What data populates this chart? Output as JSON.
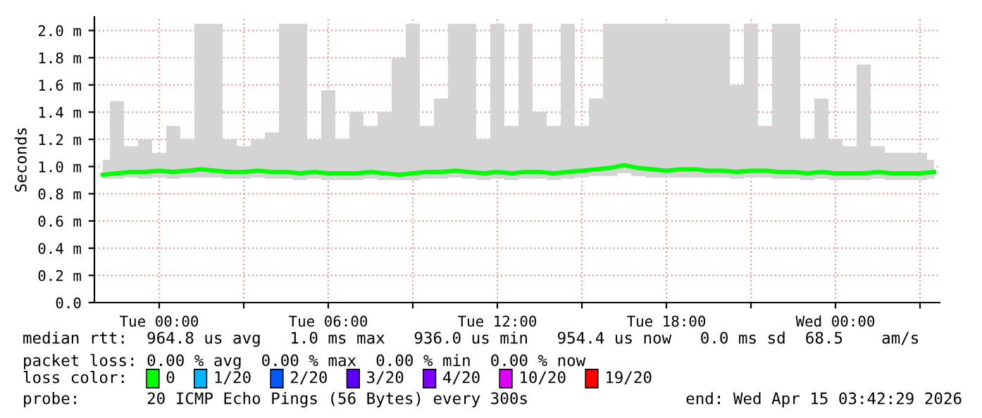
{
  "chart_data": {
    "type": "line",
    "ylabel": "Seconds",
    "x": [
      "2026-04-13T22:00",
      "2026-04-13T22:30",
      "2026-04-13T23:00",
      "2026-04-13T23:30",
      "2026-04-14T00:00",
      "2026-04-14T00:30",
      "2026-04-14T01:00",
      "2026-04-14T01:30",
      "2026-04-14T02:00",
      "2026-04-14T02:30",
      "2026-04-14T03:00",
      "2026-04-14T03:30",
      "2026-04-14T04:00",
      "2026-04-14T04:30",
      "2026-04-14T05:00",
      "2026-04-14T05:30",
      "2026-04-14T06:00",
      "2026-04-14T06:30",
      "2026-04-14T07:00",
      "2026-04-14T07:30",
      "2026-04-14T08:00",
      "2026-04-14T08:30",
      "2026-04-14T09:00",
      "2026-04-14T09:30",
      "2026-04-14T10:00",
      "2026-04-14T10:30",
      "2026-04-14T11:00",
      "2026-04-14T11:30",
      "2026-04-14T12:00",
      "2026-04-14T12:30",
      "2026-04-14T13:00",
      "2026-04-14T13:30",
      "2026-04-14T14:00",
      "2026-04-14T14:30",
      "2026-04-14T15:00",
      "2026-04-14T15:30",
      "2026-04-14T16:00",
      "2026-04-14T16:30",
      "2026-04-14T17:00",
      "2026-04-14T17:30",
      "2026-04-14T18:00",
      "2026-04-14T18:30",
      "2026-04-14T19:00",
      "2026-04-14T19:30",
      "2026-04-14T20:00",
      "2026-04-14T20:30",
      "2026-04-14T21:00",
      "2026-04-14T21:30",
      "2026-04-14T22:00",
      "2026-04-14T22:30",
      "2026-04-14T23:00",
      "2026-04-14T23:30",
      "2026-04-15T00:00",
      "2026-04-15T00:30",
      "2026-04-15T01:00",
      "2026-04-15T01:30",
      "2026-04-15T02:00",
      "2026-04-15T02:30",
      "2026-04-15T03:00",
      "2026-04-15T03:30"
    ],
    "series": [
      {
        "color": "#00ff00",
        "values": [
          0.94,
          0.95,
          0.96,
          0.96,
          0.97,
          0.96,
          0.97,
          0.98,
          0.97,
          0.96,
          0.96,
          0.97,
          0.96,
          0.96,
          0.95,
          0.96,
          0.95,
          0.95,
          0.95,
          0.96,
          0.95,
          0.94,
          0.95,
          0.96,
          0.96,
          0.97,
          0.96,
          0.95,
          0.96,
          0.95,
          0.96,
          0.96,
          0.95,
          0.96,
          0.97,
          0.98,
          0.99,
          1.01,
          0.99,
          0.98,
          0.97,
          0.98,
          0.98,
          0.97,
          0.97,
          0.96,
          0.97,
          0.97,
          0.96,
          0.96,
          0.95,
          0.96,
          0.95,
          0.95,
          0.95,
          0.96,
          0.95,
          0.95,
          0.95,
          0.96
        ],
        "lower": [
          0.91,
          0.91,
          0.92,
          0.91,
          0.92,
          0.91,
          0.92,
          0.92,
          0.92,
          0.91,
          0.91,
          0.92,
          0.91,
          0.91,
          0.9,
          0.91,
          0.9,
          0.9,
          0.9,
          0.91,
          0.9,
          0.9,
          0.9,
          0.91,
          0.91,
          0.92,
          0.91,
          0.9,
          0.91,
          0.9,
          0.91,
          0.91,
          0.9,
          0.91,
          0.92,
          0.93,
          0.93,
          0.95,
          0.93,
          0.92,
          0.92,
          0.92,
          0.92,
          0.92,
          0.92,
          0.91,
          0.92,
          0.92,
          0.91,
          0.91,
          0.9,
          0.91,
          0.9,
          0.9,
          0.9,
          0.91,
          0.9,
          0.9,
          0.9,
          0.91
        ],
        "upper": [
          1.05,
          1.48,
          1.15,
          1.2,
          1.1,
          1.3,
          1.2,
          2.05,
          2.05,
          1.2,
          1.15,
          1.2,
          1.25,
          2.05,
          2.05,
          1.2,
          1.56,
          1.2,
          1.4,
          1.3,
          1.4,
          1.8,
          2.05,
          1.3,
          1.5,
          2.05,
          2.05,
          1.2,
          2.05,
          1.3,
          2.05,
          1.4,
          1.3,
          2.05,
          1.3,
          1.5,
          2.05,
          2.05,
          2.05,
          2.05,
          2.05,
          2.05,
          2.05,
          2.05,
          2.05,
          1.6,
          2.05,
          1.3,
          2.05,
          2.05,
          1.2,
          1.5,
          1.2,
          1.15,
          1.75,
          1.15,
          1.1,
          1.1,
          1.1,
          1.05
        ]
      }
    ],
    "xlim": [
      "2026-04-13T21:42",
      "2026-04-15T03:42"
    ],
    "xticks": [
      {
        "value": "2026-04-14T00:00",
        "label": "Tue 00:00"
      },
      {
        "value": "2026-04-14T03:00",
        "label": null
      },
      {
        "value": "2026-04-14T06:00",
        "label": "Tue 06:00"
      },
      {
        "value": "2026-04-14T09:00",
        "label": null
      },
      {
        "value": "2026-04-14T12:00",
        "label": "Tue 12:00"
      },
      {
        "value": "2026-04-14T15:00",
        "label": null
      },
      {
        "value": "2026-04-14T18:00",
        "label": "Tue 18:00"
      },
      {
        "value": "2026-04-14T21:00",
        "label": null
      },
      {
        "value": "2026-04-15T00:00",
        "label": "Wed 00:00"
      },
      {
        "value": "2026-04-15T03:00",
        "label": null
      }
    ],
    "ylim": [
      0,
      2.1
    ],
    "yticks": [
      {
        "value": 0,
        "label": "0.0"
      },
      {
        "value": 0.2,
        "label": "0.2 m"
      },
      {
        "value": 0.4,
        "label": "0.4 m"
      },
      {
        "value": 0.6,
        "label": "0.6 m"
      },
      {
        "value": 0.8,
        "label": "0.8 m"
      },
      {
        "value": 1.0,
        "label": "1.0 m"
      },
      {
        "value": 1.2,
        "label": "1.2 m"
      },
      {
        "value": 1.4,
        "label": "1.4 m"
      },
      {
        "value": 1.6,
        "label": "1.6 m"
      },
      {
        "value": 1.8,
        "label": "1.8 m"
      },
      {
        "value": 2.0,
        "label": "2.0 m"
      }
    ],
    "grid": true,
    "marker": "none",
    "line_style": "solid",
    "annotations": [
      "median rtt:  964.8 us avg   1.0 ms max   936.0 us min   954.4 us now   0.0 ms sd  68.5    am/s",
      "packet loss: 0.00 % avg  0.00 % max  0.00 % min  0.00 % now",
      "loss color:  0  1/20  2/20  3/20  4/20  10/20  19/20",
      "probe:       20 ICMP Echo Pings (56 Bytes) every 300s",
      "end: Wed Apr 15 03:42:29 2026"
    ]
  }
}
